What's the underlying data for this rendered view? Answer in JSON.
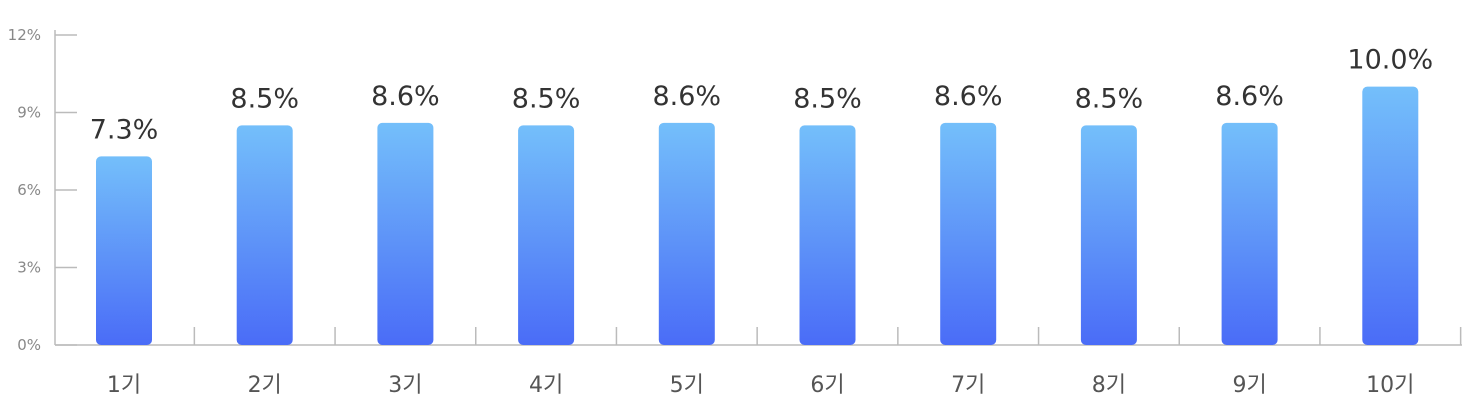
{
  "chart_data": {
    "type": "bar",
    "categories": [
      "1기",
      "2기",
      "3기",
      "4기",
      "5기",
      "6기",
      "7기",
      "8기",
      "9기",
      "10기"
    ],
    "values": [
      7.3,
      8.5,
      8.6,
      8.5,
      8.6,
      8.5,
      8.6,
      8.5,
      8.6,
      10.0
    ],
    "value_labels": [
      "7.3%",
      "8.5%",
      "8.6%",
      "8.5%",
      "8.6%",
      "8.5%",
      "8.6%",
      "8.5%",
      "8.6%",
      "10.0%"
    ],
    "yticks": [
      0,
      3,
      6,
      9,
      12
    ],
    "ytick_labels": [
      "0%",
      "3%",
      "6%",
      "9%",
      "12%"
    ],
    "ylim": [
      0,
      12
    ],
    "title": "",
    "xlabel": "",
    "ylabel": "",
    "grid": false,
    "colors": {
      "bar_top": "#74BFFA",
      "bar_bottom": "#4A6CF7",
      "axis": "#BBBBBB"
    }
  }
}
